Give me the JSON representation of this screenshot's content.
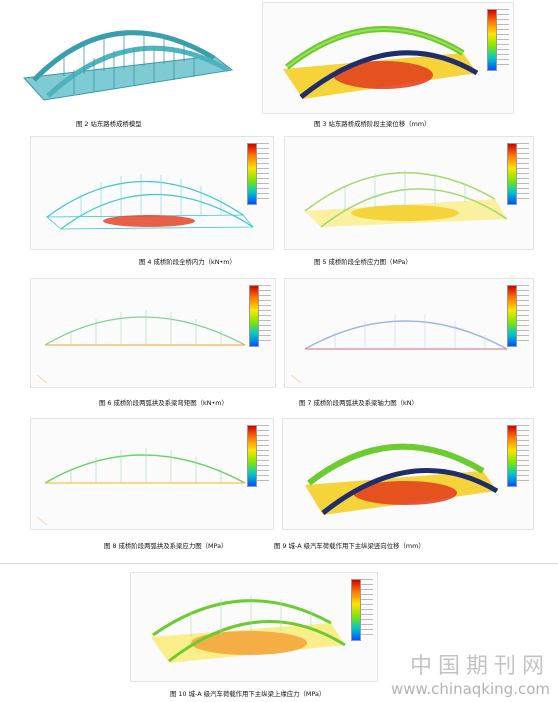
{
  "captions": {
    "fig2": "图 2 站东路桥成桥模型",
    "fig3": "图 3 站东路桥成桥阶段主梁位移（mm）",
    "fig4": "图 4 成桥阶段全桥内力（kN•m）",
    "fig5": "图 5 成桥阶段全桥应力图（MPa）",
    "fig6": "图 6 成桥阶段两弧拱及系梁弯矩图（kN•m）",
    "fig7": "图 7 成桥阶段两弧拱及系梁轴力图（kN）",
    "fig8": "图 8 成桥阶段两弧拱及系梁应力图（MPa）",
    "fig9": "图 9 城-A 级汽车荷载作用下主纵梁竖向位移（mm）",
    "fig10": "图 10 城-A 级汽车荷载作用下主纵梁上缘应力（MPa）"
  },
  "watermark": {
    "cn": "中国期刊网",
    "url": "www.chinaqking.com"
  },
  "colors": {
    "bridge_teal": "#4fb3bf",
    "arch_navy": "#1f2d6b",
    "arch_green": "#6ccb2e",
    "deck_red": "#e23b1c",
    "deck_yellow": "#f5d33a",
    "wire_cyan": "#3ec6d8"
  }
}
